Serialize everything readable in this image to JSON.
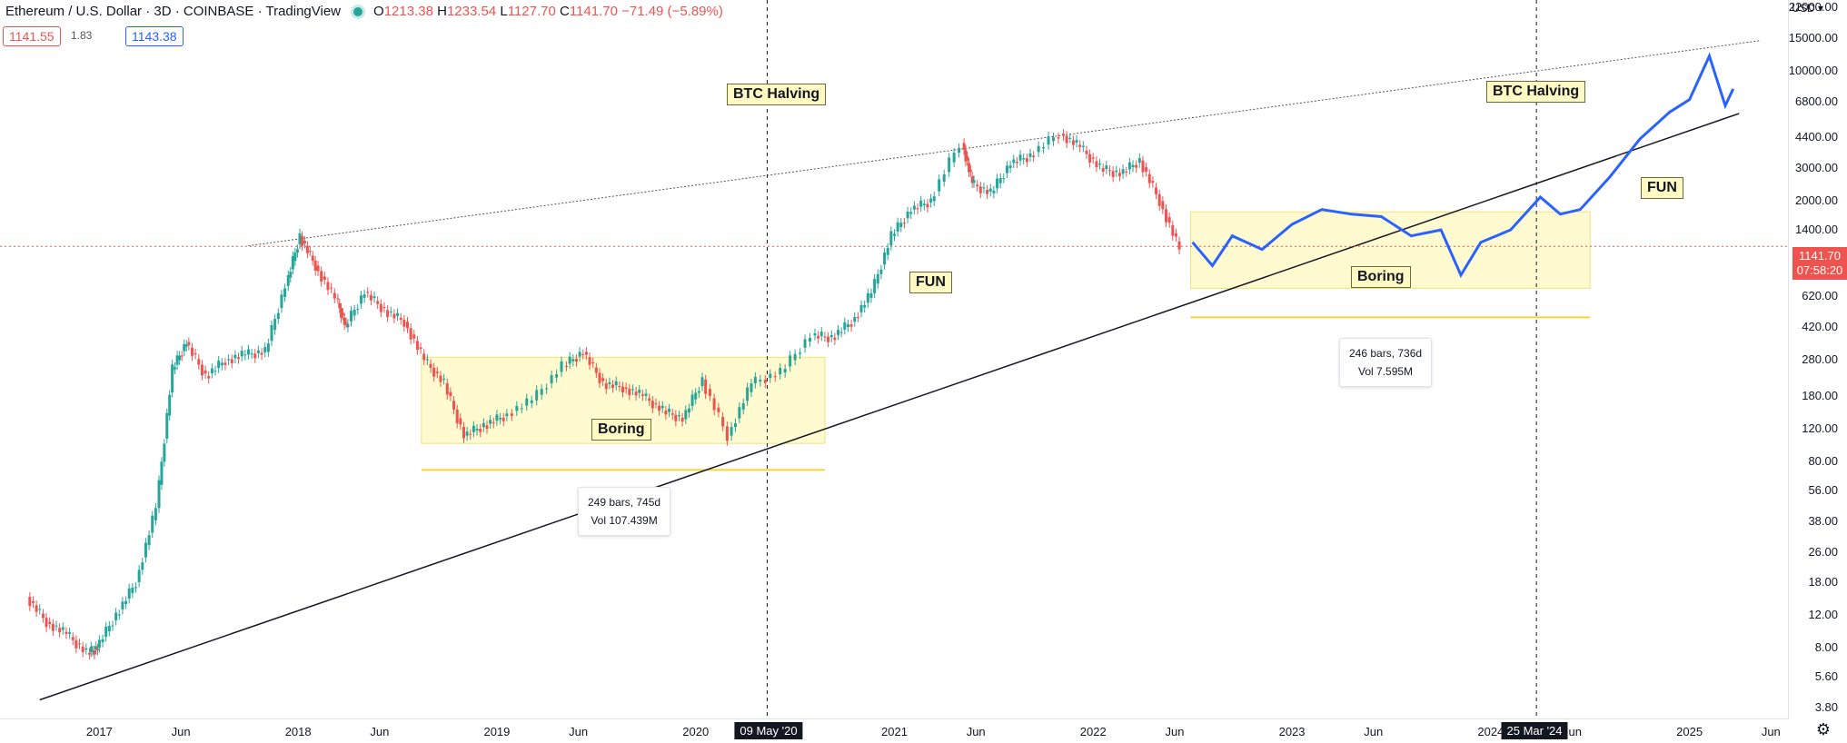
{
  "legend": {
    "title": "Ethereum / U.S. Dollar · 3D · COINBASE · TradingView",
    "open_label": "O",
    "open": "1213.38",
    "high_label": "H",
    "high": "1233.54",
    "low_label": "L",
    "low": "1127.70",
    "close_label": "C",
    "close": "1141.70",
    "change": "−71.49 (−5.89%)"
  },
  "quote": {
    "bid": "1141.55",
    "spread": "1.83",
    "ask": "1143.38"
  },
  "price_axis": {
    "currency": "USD",
    "labels": [
      "22000.00",
      "15000.00",
      "10000.00",
      "6800.00",
      "4400.00",
      "3000.00",
      "2000.00",
      "1400.00",
      "620.00",
      "420.00",
      "280.00",
      "180.00",
      "120.00",
      "80.00",
      "56.00",
      "38.00",
      "26.00",
      "18.00",
      "12.00",
      "8.00",
      "5.60",
      "3.80"
    ],
    "last_price": "1141.70",
    "countdown": "07:58:20"
  },
  "time_axis": {
    "labels": [
      "2017",
      "Jun",
      "2018",
      "Jun",
      "2019",
      "Jun",
      "2020",
      "2021",
      "Jun",
      "2022",
      "Jun",
      "2023",
      "Jun",
      "2024",
      "Jun",
      "2025",
      "Jun"
    ],
    "markers": [
      "09 May '20",
      "25 Mar '24"
    ]
  },
  "annotations": {
    "halving_1": "BTC Halving",
    "halving_2": "BTC Halving",
    "boring_1": "Boring",
    "boring_2": "Boring",
    "fun_1": "FUN",
    "fun_2": "FUN",
    "range_1_bars": "249 bars, 745d",
    "range_1_vol": "Vol 107.439M",
    "range_2_bars": "246 bars, 736d",
    "range_2_vol": "Vol 7.595M"
  },
  "colors": {
    "up": "#26a69a",
    "down": "#ef5350",
    "projection": "#2962ff",
    "box_fill": "#fff9c4"
  },
  "chart_data": {
    "type": "line",
    "title": "Ethereum / U.S. Dollar · 3D · COINBASE · TradingView",
    "series": [
      {
        "values": [
          [
            2016.65,
            15
          ],
          [
            2016.75,
            11
          ],
          [
            2016.85,
            9.5
          ],
          [
            2016.95,
            7.5
          ],
          [
            2017.0,
            8
          ],
          [
            2017.1,
            12
          ],
          [
            2017.2,
            18
          ],
          [
            2017.3,
            45
          ],
          [
            2017.38,
            250
          ],
          [
            2017.45,
            350
          ],
          [
            2017.55,
            230
          ],
          [
            2017.65,
            280
          ],
          [
            2017.75,
            300
          ],
          [
            2017.85,
            310
          ],
          [
            2017.95,
            700
          ],
          [
            2018.02,
            1300
          ],
          [
            2018.1,
            900
          ],
          [
            2018.2,
            600
          ],
          [
            2018.25,
            420
          ],
          [
            2018.35,
            650
          ],
          [
            2018.45,
            520
          ],
          [
            2018.55,
            450
          ],
          [
            2018.65,
            280
          ],
          [
            2018.75,
            210
          ],
          [
            2018.85,
            110
          ],
          [
            2018.95,
            125
          ],
          [
            2019.05,
            140
          ],
          [
            2019.2,
            170
          ],
          [
            2019.35,
            260
          ],
          [
            2019.45,
            310
          ],
          [
            2019.55,
            210
          ],
          [
            2019.65,
            200
          ],
          [
            2019.75,
            180
          ],
          [
            2019.85,
            150
          ],
          [
            2019.95,
            135
          ],
          [
            2020.05,
            220
          ],
          [
            2020.18,
            110
          ],
          [
            2020.3,
            210
          ],
          [
            2020.45,
            240
          ],
          [
            2020.6,
            380
          ],
          [
            2020.7,
            370
          ],
          [
            2020.8,
            450
          ],
          [
            2020.9,
            640
          ],
          [
            2021.0,
            1300
          ],
          [
            2021.1,
            1800
          ],
          [
            2021.2,
            2000
          ],
          [
            2021.35,
            4100
          ],
          [
            2021.4,
            2500
          ],
          [
            2021.5,
            2200
          ],
          [
            2021.6,
            3200
          ],
          [
            2021.7,
            3500
          ],
          [
            2021.85,
            4600
          ],
          [
            2021.95,
            3900
          ],
          [
            2022.05,
            3000
          ],
          [
            2022.15,
            2800
          ],
          [
            2022.25,
            3300
          ],
          [
            2022.35,
            2000
          ],
          [
            2022.45,
            1100
          ]
        ]
      },
      {
        "values": [
          [
            2022.5,
            1200
          ],
          [
            2022.6,
            900
          ],
          [
            2022.7,
            1300
          ],
          [
            2022.85,
            1100
          ],
          [
            2023.0,
            1500
          ],
          [
            2023.15,
            1800
          ],
          [
            2023.3,
            1700
          ],
          [
            2023.45,
            1650
          ],
          [
            2023.6,
            1300
          ],
          [
            2023.75,
            1400
          ],
          [
            2023.85,
            800
          ],
          [
            2023.95,
            1200
          ],
          [
            2024.1,
            1400
          ],
          [
            2024.25,
            2100
          ],
          [
            2024.35,
            1700
          ],
          [
            2024.45,
            1800
          ],
          [
            2024.6,
            2700
          ],
          [
            2024.75,
            4300
          ],
          [
            2024.9,
            6000
          ],
          [
            2025.0,
            7000
          ],
          [
            2025.1,
            12000
          ],
          [
            2025.18,
            6500
          ],
          [
            2025.22,
            8000
          ]
        ]
      }
    ],
    "yscale": "log",
    "ylim": [
      3.3,
      24000
    ],
    "xlim": [
      2016.5,
      2025.5
    ],
    "annotations": [
      "BTC Halving",
      "BTC Halving",
      "Boring",
      "Boring",
      "FUN",
      "FUN"
    ]
  }
}
